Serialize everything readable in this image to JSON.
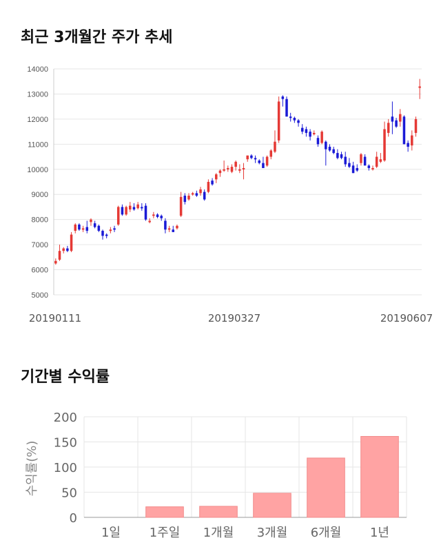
{
  "stock_section": {
    "title": "최근 3개월간 주가 추세"
  },
  "returns_section": {
    "title": "기간별 수익률"
  },
  "colors": {
    "up": "#e53935",
    "down": "#1a1ad6",
    "grid": "#e6e6e6",
    "bar": "#ffa3a3",
    "bar_edge": "#f28b8b"
  },
  "chart_data": [
    {
      "type": "candlestick",
      "title": "",
      "ylim": [
        5000,
        14000
      ],
      "yticks": [
        5000,
        6000,
        7000,
        8000,
        9000,
        10000,
        11000,
        12000,
        13000,
        14000
      ],
      "x_labels": [
        "20190111",
        "20190327",
        "20190607"
      ],
      "grid": true,
      "ohlc": [
        [
          6250,
          6450,
          6200,
          6350
        ],
        [
          6400,
          7000,
          6350,
          6750
        ],
        [
          6750,
          6900,
          6650,
          6850
        ],
        [
          6850,
          6950,
          6700,
          6750
        ],
        [
          6750,
          7500,
          6700,
          7400
        ],
        [
          7550,
          7850,
          7450,
          7800
        ],
        [
          7800,
          7850,
          7550,
          7600
        ],
        [
          7600,
          7750,
          7500,
          7650
        ],
        [
          7700,
          7950,
          7450,
          7550
        ],
        [
          7900,
          8050,
          7750,
          8000
        ],
        [
          7850,
          7950,
          7650,
          7700
        ],
        [
          7750,
          7800,
          7500,
          7550
        ],
        [
          7550,
          7600,
          7200,
          7350
        ],
        [
          7400,
          7450,
          7250,
          7350
        ],
        [
          7550,
          7700,
          7450,
          7600
        ],
        [
          7650,
          7750,
          7500,
          7600
        ],
        [
          7800,
          8550,
          7750,
          8500
        ],
        [
          8500,
          8600,
          8150,
          8200
        ],
        [
          8200,
          8550,
          8150,
          8500
        ],
        [
          8400,
          8700,
          8300,
          8550
        ],
        [
          8500,
          8650,
          8350,
          8400
        ],
        [
          8450,
          8700,
          8400,
          8600
        ],
        [
          8500,
          8650,
          8350,
          8450
        ],
        [
          8550,
          8650,
          7950,
          8000
        ],
        [
          7950,
          8050,
          7850,
          7950
        ],
        [
          8150,
          8300,
          8050,
          8200
        ],
        [
          8200,
          8250,
          8050,
          8100
        ],
        [
          8150,
          8200,
          7950,
          8050
        ],
        [
          7950,
          8050,
          7450,
          7600
        ],
        [
          7600,
          7750,
          7500,
          7650
        ],
        [
          7600,
          7750,
          7500,
          7500
        ],
        [
          7650,
          7800,
          7600,
          7750
        ],
        [
          8150,
          9100,
          8100,
          8900
        ],
        [
          8950,
          9050,
          8600,
          8700
        ],
        [
          8800,
          9050,
          8750,
          8950
        ],
        [
          9000,
          9100,
          8950,
          9050
        ],
        [
          9050,
          9150,
          8900,
          8950
        ],
        [
          9050,
          9300,
          8950,
          9200
        ],
        [
          9100,
          9200,
          8750,
          8800
        ],
        [
          9100,
          9600,
          9050,
          9500
        ],
        [
          9550,
          9650,
          9350,
          9400
        ],
        [
          9600,
          9850,
          9450,
          9800
        ],
        [
          9850,
          10000,
          9700,
          9950
        ],
        [
          9950,
          10350,
          9900,
          10000
        ],
        [
          10050,
          10150,
          9900,
          10050
        ],
        [
          9900,
          10200,
          9850,
          10100
        ],
        [
          10100,
          10350,
          9950,
          10300
        ],
        [
          9950,
          10200,
          9850,
          10000
        ],
        [
          10050,
          10250,
          9600,
          10050
        ],
        [
          10400,
          10550,
          10300,
          10550
        ],
        [
          10550,
          10600,
          10400,
          10450
        ],
        [
          10450,
          10550,
          10250,
          10400
        ],
        [
          10350,
          10400,
          10200,
          10250
        ],
        [
          10250,
          10500,
          10050,
          10050
        ],
        [
          10150,
          10550,
          10100,
          10500
        ],
        [
          10500,
          10800,
          10400,
          10750
        ],
        [
          10700,
          11550,
          10650,
          11100
        ],
        [
          11150,
          12900,
          11050,
          12700
        ],
        [
          12900,
          12950,
          12500,
          12800
        ],
        [
          12800,
          12900,
          12100,
          12100
        ],
        [
          12100,
          12250,
          11900,
          12050
        ],
        [
          12050,
          12100,
          11850,
          11950
        ],
        [
          11950,
          12000,
          11700,
          11850
        ],
        [
          11650,
          11800,
          11400,
          11500
        ],
        [
          11600,
          11700,
          11300,
          11450
        ],
        [
          11500,
          11600,
          11150,
          11300
        ],
        [
          11400,
          11550,
          11350,
          11450
        ],
        [
          11250,
          11350,
          10900,
          11000
        ],
        [
          11050,
          11550,
          11000,
          11500
        ],
        [
          11100,
          11150,
          10150,
          10800
        ],
        [
          10900,
          11000,
          10700,
          10750
        ],
        [
          10800,
          10900,
          10600,
          10650
        ],
        [
          10650,
          10800,
          10400,
          10450
        ],
        [
          10600,
          10700,
          10400,
          10450
        ],
        [
          10500,
          10700,
          10100,
          10200
        ],
        [
          10250,
          10450,
          10050,
          10100
        ],
        [
          10150,
          10300,
          9850,
          9850
        ],
        [
          10050,
          10200,
          9900,
          9950
        ],
        [
          10250,
          10650,
          10150,
          10600
        ],
        [
          10500,
          10600,
          10150,
          10150
        ],
        [
          10150,
          10200,
          9950,
          10050
        ],
        [
          10000,
          10150,
          9950,
          10050
        ],
        [
          10100,
          10700,
          10050,
          10500
        ],
        [
          10300,
          10650,
          10250,
          10400
        ],
        [
          10350,
          11900,
          10300,
          11600
        ],
        [
          11450,
          12000,
          11300,
          11850
        ],
        [
          12100,
          12700,
          11400,
          11900
        ],
        [
          11950,
          12050,
          11650,
          11700
        ],
        [
          11900,
          12400,
          11700,
          12200
        ],
        [
          12100,
          12150,
          11000,
          11000
        ],
        [
          11050,
          11150,
          10700,
          10900
        ],
        [
          10950,
          11550,
          10750,
          11350
        ],
        [
          11450,
          12100,
          11300,
          12000
        ],
        [
          13250,
          13600,
          12800,
          13300
        ]
      ]
    },
    {
      "type": "bar",
      "title": "",
      "ylabel": "수익률(%)",
      "ylim": [
        0,
        200
      ],
      "yticks": [
        0,
        50,
        100,
        150,
        200
      ],
      "categories": [
        "1일",
        "1주일",
        "1개월",
        "3개월",
        "6개월",
        "1년"
      ],
      "values": [
        0,
        21,
        22,
        48,
        118,
        161
      ],
      "grid": true
    }
  ]
}
